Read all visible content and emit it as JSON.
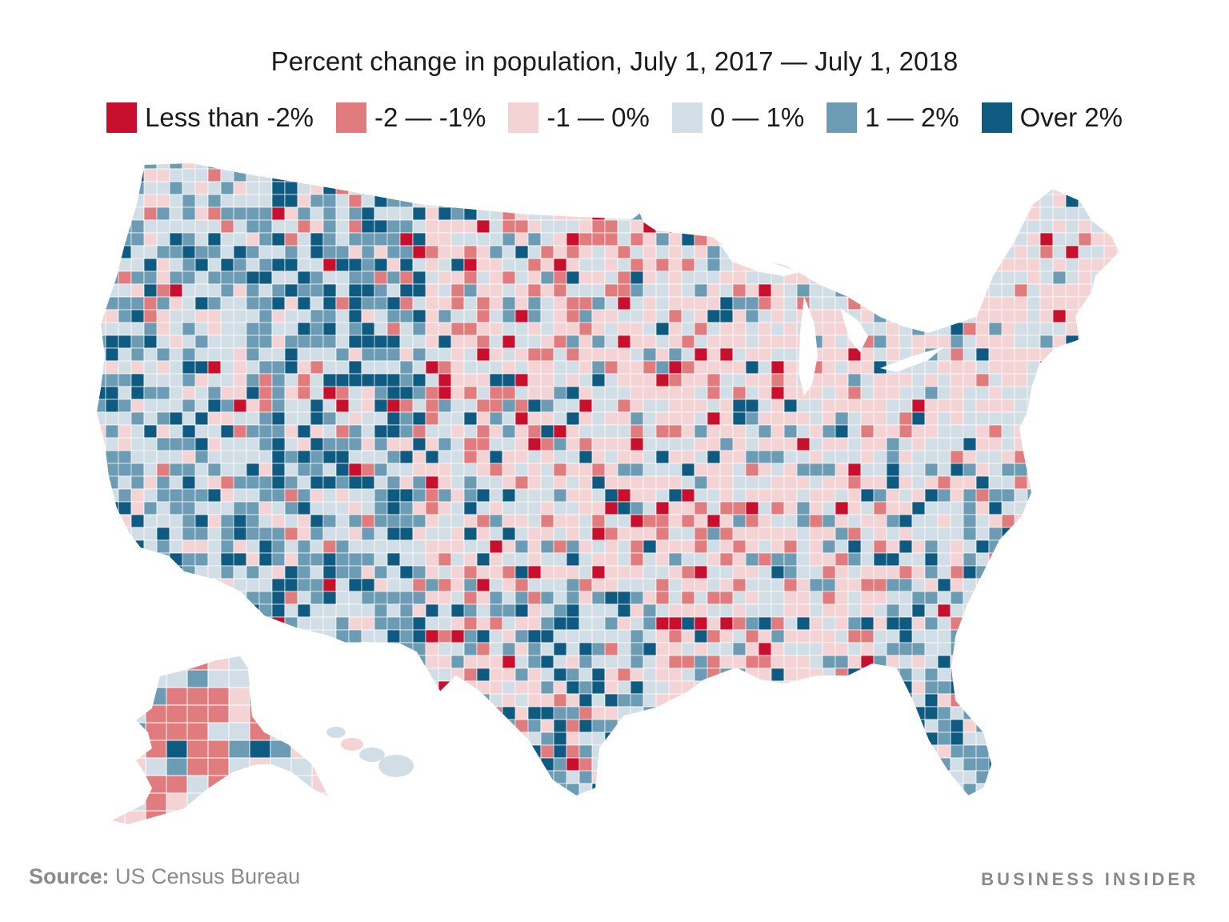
{
  "title": "Percent change in population, July 1, 2017 — July 1, 2018",
  "legend": [
    {
      "label": "Less than -2%",
      "color": "#c8102e"
    },
    {
      "label": "-2 — -1%",
      "color": "#e07b7e"
    },
    {
      "label": "-1 — 0%",
      "color": "#f4d3d4"
    },
    {
      "label": "0 — 1%",
      "color": "#d2dee5"
    },
    {
      "label": "1 — 2%",
      "color": "#6c9cb3"
    },
    {
      "label": "Over 2%",
      "color": "#0e5a80"
    }
  ],
  "source_label": "Source:",
  "source_text": " US Census Bureau",
  "brand": "BUSINESS INSIDER"
}
